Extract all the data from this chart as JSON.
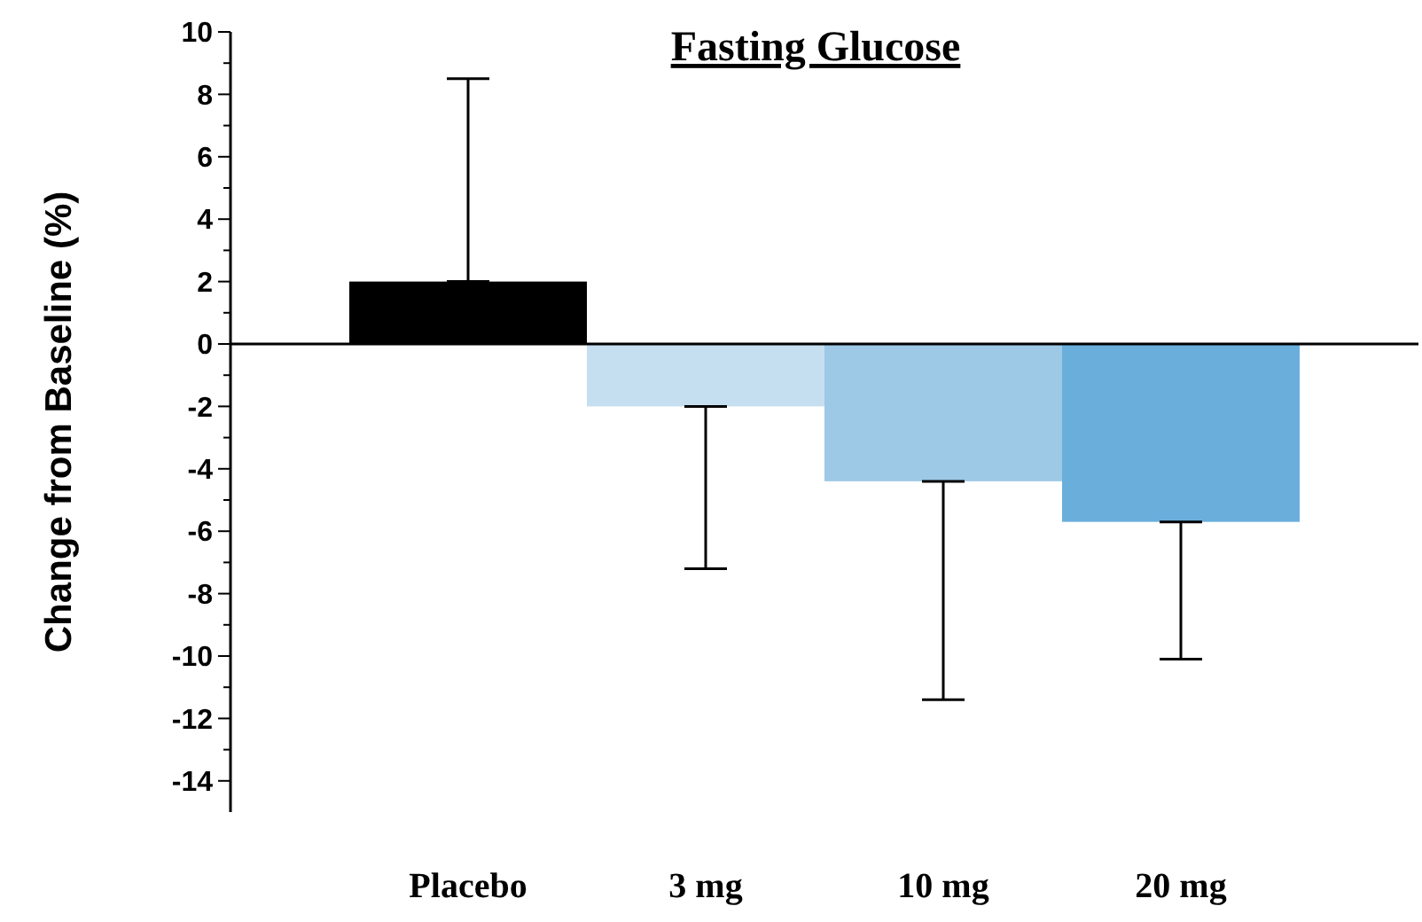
{
  "chart_data": {
    "type": "bar",
    "title": "Fasting Glucose",
    "ylabel": "Change from Baseline (%)",
    "categories": [
      "Placebo",
      "3 mg",
      "10 mg",
      "20 mg"
    ],
    "values": [
      2.0,
      -2.0,
      -4.4,
      -5.7
    ],
    "colors": [
      "#000000",
      "#c5dff0",
      "#9dc8e6",
      "#6aafdc"
    ],
    "errors": [
      [
        2.0,
        8.5
      ],
      [
        -7.2,
        -2.0
      ],
      [
        -11.4,
        -4.4
      ],
      [
        -10.1,
        -5.7
      ]
    ],
    "ylim": [
      -15,
      10
    ],
    "yticks": [
      -14,
      {
        "value": -13,
        "label": null
      },
      -12,
      {
        "value": -11,
        "label": null
      },
      -10,
      {
        "value": -9,
        "label": null
      },
      -8,
      {
        "value": -7,
        "label": null
      },
      -6,
      {
        "value": -5,
        "label": null
      },
      -4,
      {
        "value": -3,
        "label": null
      },
      -2,
      {
        "value": -1,
        "label": null
      },
      0,
      {
        "value": 1,
        "label": null
      },
      2,
      {
        "value": 3,
        "label": null
      },
      4,
      {
        "value": 5,
        "label": null
      },
      6,
      {
        "value": 7,
        "label": null
      },
      8,
      {
        "value": 9,
        "label": null
      },
      10
    ],
    "tick_labels": "y"
  }
}
